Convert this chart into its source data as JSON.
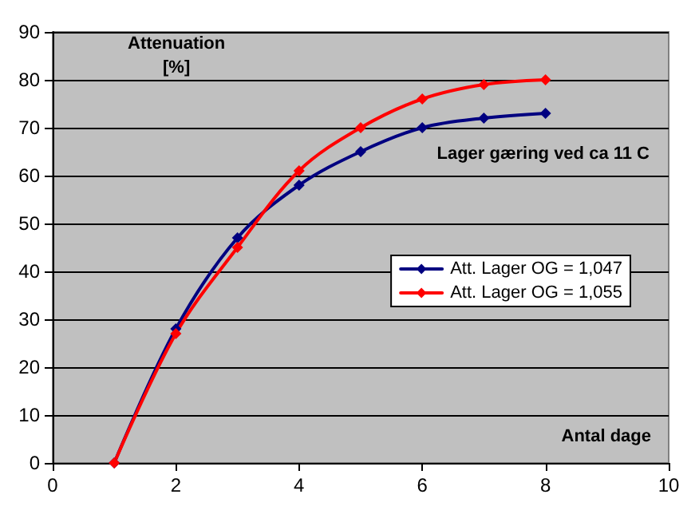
{
  "chart_data": {
    "type": "line",
    "ylabel": "Attenuation\n[%]",
    "xlabel": "Antal dage",
    "annotations": [
      "Lager gæring ved ca 11 C"
    ],
    "x": [
      1,
      2,
      3,
      4,
      5,
      6,
      7,
      8
    ],
    "series": [
      {
        "name": "Att. Lager OG = 1,047",
        "color": "#000080",
        "values": [
          0,
          28,
          47,
          58,
          65,
          70,
          72,
          73
        ]
      },
      {
        "name": "Att. Lager OG = 1,055",
        "color": "#ff0000",
        "values": [
          0,
          27,
          45,
          61,
          70,
          76,
          79,
          80
        ]
      }
    ],
    "xlim": [
      0,
      10
    ],
    "xticks": [
      0,
      2,
      4,
      6,
      8,
      10
    ],
    "ylim": [
      0,
      90
    ],
    "yticks": [
      0,
      10,
      20,
      30,
      40,
      50,
      60,
      70,
      80,
      90
    ],
    "grid": "y",
    "legend": "right",
    "marker": "diamond",
    "line_style": "solid"
  }
}
